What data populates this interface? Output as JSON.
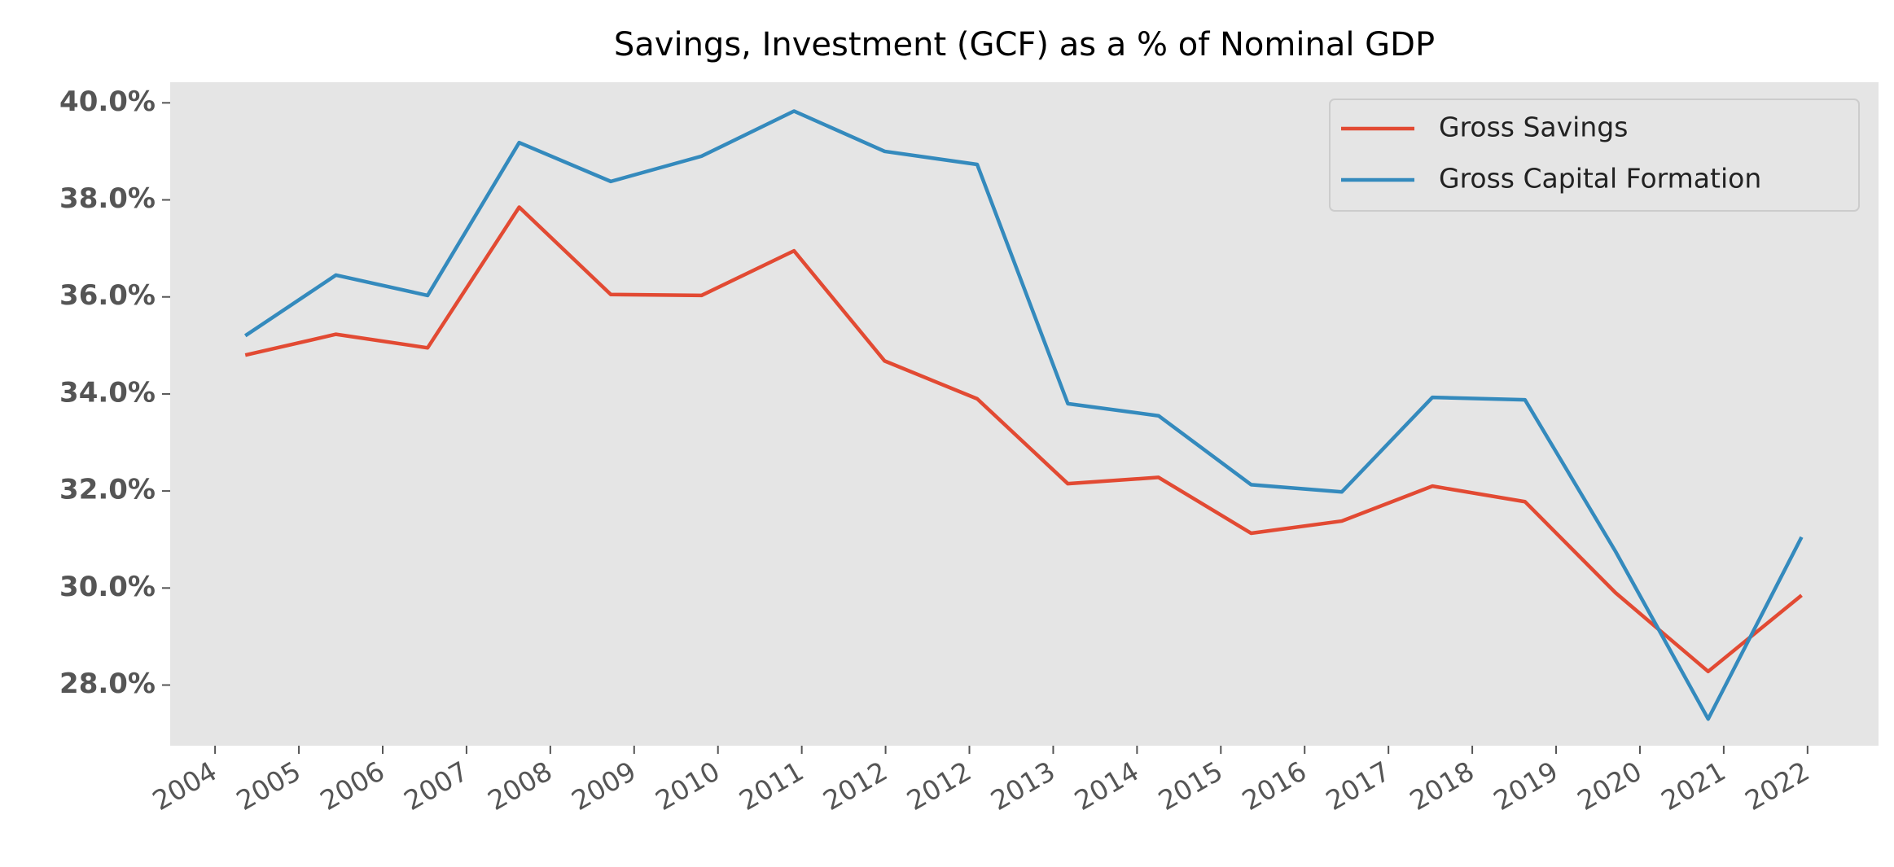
{
  "chart_data": {
    "type": "line",
    "title": "Savings, Investment (GCF) as a % of Nominal GDP",
    "x": [
      2005.09,
      2006.08,
      2007.08,
      2008.08,
      2009.08,
      2010.07,
      2011.08,
      2012.07,
      2013.08,
      2014.07,
      2015.06,
      2016.07,
      2017.06,
      2018.05,
      2019.06,
      2020.05,
      2021.06,
      2022.08
    ],
    "series": [
      {
        "name": "Gross Savings",
        "color": "#e24a33",
        "values": [
          34.8,
          35.23,
          34.95,
          37.85,
          36.05,
          36.03,
          36.95,
          34.68,
          33.9,
          32.15,
          32.28,
          31.13,
          31.38,
          32.1,
          31.78,
          29.9,
          28.28,
          29.85
        ]
      },
      {
        "name": "Gross Capital Formation",
        "color": "#348abd",
        "values": [
          35.2,
          36.45,
          36.03,
          39.18,
          38.38,
          38.9,
          39.83,
          39.0,
          38.73,
          33.8,
          33.55,
          32.13,
          31.98,
          33.93,
          33.88,
          30.75,
          27.3,
          31.05
        ]
      }
    ],
    "xlim": [
      2004.27,
      2022.92
    ],
    "xticks": [
      {
        "value": 2004.76,
        "label": "2004"
      },
      {
        "value": 2005.675,
        "label": "2005"
      },
      {
        "value": 2006.59,
        "label": "2006"
      },
      {
        "value": 2007.505,
        "label": "2007"
      },
      {
        "value": 2008.42,
        "label": "2008"
      },
      {
        "value": 2009.335,
        "label": "2009"
      },
      {
        "value": 2010.25,
        "label": "2010"
      },
      {
        "value": 2011.165,
        "label": "2011"
      },
      {
        "value": 2012.08,
        "label": "2012"
      },
      {
        "value": 2012.995,
        "label": "2012"
      },
      {
        "value": 2013.91,
        "label": "2013"
      },
      {
        "value": 2014.825,
        "label": "2014"
      },
      {
        "value": 2015.74,
        "label": "2015"
      },
      {
        "value": 2016.655,
        "label": "2016"
      },
      {
        "value": 2017.57,
        "label": "2017"
      },
      {
        "value": 2018.485,
        "label": "2018"
      },
      {
        "value": 2019.4,
        "label": "2019"
      },
      {
        "value": 2020.315,
        "label": "2020"
      },
      {
        "value": 2021.23,
        "label": "2021"
      },
      {
        "value": 2022.145,
        "label": "2022"
      }
    ],
    "ylim": [
      26.75,
      40.425
    ],
    "yticks": [
      {
        "value": 28,
        "label": "28.0%"
      },
      {
        "value": 30,
        "label": "30.0%"
      },
      {
        "value": 32,
        "label": "32.0%"
      },
      {
        "value": 34,
        "label": "34.0%"
      },
      {
        "value": 36,
        "label": "36.0%"
      },
      {
        "value": 38,
        "label": "38.0%"
      },
      {
        "value": 40,
        "label": "40.0%"
      }
    ],
    "grid": false,
    "legend": "upper right"
  }
}
